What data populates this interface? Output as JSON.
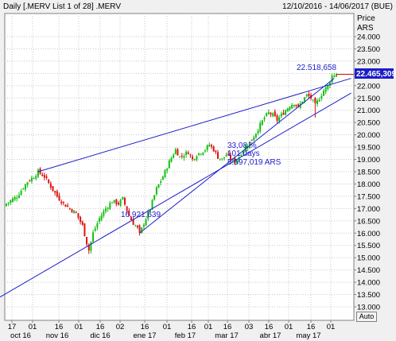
{
  "header": {
    "title": "Daily [.MERV List 1 of 28] .MERV",
    "range": "12/10/2016 - 14/06/2017 (BUE)"
  },
  "axis": {
    "y_title": "Price",
    "y_unit": "ARS",
    "auto_button": "Auto",
    "x_day_labels": [
      "17",
      "01",
      "16",
      "01",
      "16",
      "02",
      "16",
      "01",
      "16",
      "01",
      "16",
      "03",
      "16",
      "01",
      "16",
      "01"
    ],
    "x_month_labels": [
      "oct 16",
      "nov 16",
      "dic 16",
      "ene 17",
      "feb 17",
      "mar 17",
      "abr 17",
      "may 17"
    ]
  },
  "colors": {
    "up": "#10c010",
    "down": "#e01010",
    "lines": "#1c1cc8",
    "price_box": "#1c1cc8",
    "grid": "#c8c8c8"
  },
  "annotations": {
    "last_price": "22.465,309",
    "high_label": "22.518,658",
    "low_label": "16.921,639",
    "stats_pct": "33,08 %",
    "stats_days": "101 days",
    "stats_value": "5.597,019 ARS"
  },
  "chart_data": {
    "type": "candlestick",
    "y_ticks": [
      "24.000",
      "23.500",
      "23.000",
      "22.500",
      "22.000",
      "21.500",
      "21.000",
      "20.500",
      "20.000",
      "19.500",
      "19.000",
      "18.500",
      "18.000",
      "17.500",
      "17.000",
      "16.500",
      "16.000",
      "15.500",
      "15.000",
      "14.500",
      "14.000",
      "13.500",
      "13.000"
    ],
    "ylim": [
      12.8,
      24.6
    ],
    "unit_note": "values in thousands of ARS",
    "close_path": [
      [
        0,
        17.2
      ],
      [
        5,
        17.5
      ],
      [
        10,
        18.1
      ],
      [
        13,
        18.3
      ],
      [
        15,
        18.5
      ],
      [
        18,
        18.3
      ],
      [
        21,
        17.9
      ],
      [
        24,
        17.5
      ],
      [
        27,
        17.2
      ],
      [
        30,
        17.0
      ],
      [
        33,
        16.8
      ],
      [
        36,
        16.3
      ],
      [
        38,
        15.6
      ],
      [
        39,
        15.3
      ],
      [
        41,
        16.0
      ],
      [
        44,
        16.6
      ],
      [
        47,
        17.0
      ],
      [
        50,
        17.3
      ],
      [
        53,
        17.2
      ],
      [
        55,
        17.4
      ],
      [
        58,
        16.7
      ],
      [
        60,
        16.4
      ],
      [
        62,
        16.2
      ],
      [
        63,
        15.95
      ],
      [
        65,
        16.4
      ],
      [
        68,
        17.0
      ],
      [
        71,
        17.8
      ],
      [
        74,
        18.3
      ],
      [
        77,
        18.9
      ],
      [
        80,
        19.4
      ],
      [
        82,
        19.1
      ],
      [
        84,
        19.2
      ],
      [
        86,
        19.3
      ],
      [
        88,
        19.0
      ],
      [
        90,
        19.2
      ],
      [
        92,
        19.3
      ],
      [
        94,
        19.4
      ],
      [
        96,
        19.6
      ],
      [
        98,
        19.4
      ],
      [
        100,
        19.1
      ],
      [
        102,
        19.0
      ],
      [
        104,
        19.2
      ],
      [
        106,
        19.0
      ],
      [
        108,
        18.9
      ],
      [
        110,
        19.1
      ],
      [
        112,
        19.4
      ],
      [
        114,
        19.6
      ],
      [
        116,
        19.8
      ],
      [
        118,
        20.1
      ],
      [
        120,
        20.4
      ],
      [
        122,
        20.7
      ],
      [
        124,
        20.9
      ],
      [
        126,
        20.8
      ],
      [
        128,
        20.6
      ],
      [
        130,
        20.8
      ],
      [
        132,
        21.0
      ],
      [
        134,
        21.2
      ],
      [
        136,
        21.3
      ],
      [
        138,
        21.1
      ],
      [
        140,
        21.4
      ],
      [
        142,
        21.6
      ],
      [
        144,
        21.5
      ],
      [
        146,
        21.2
      ],
      [
        148,
        21.5
      ],
      [
        150,
        21.8
      ],
      [
        152,
        22.0
      ],
      [
        154,
        22.4
      ],
      [
        156,
        22.47
      ]
    ],
    "lines": [
      {
        "x1": -3,
        "y1": 13.4,
        "x2": 163,
        "y2": 21.7
      },
      {
        "x1": 15,
        "y1": 18.5,
        "x2": 163,
        "y2": 22.3
      },
      {
        "x1": 63,
        "y1": 16.0,
        "x2": 155,
        "y2": 22.3
      }
    ],
    "high_point": [
      155,
      22.52
    ],
    "low_point": [
      63,
      16.92
    ],
    "last": 22.465
  }
}
